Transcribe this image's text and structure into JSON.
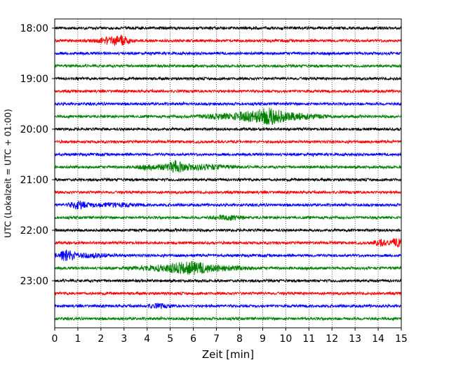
{
  "chart_data": {
    "type": "line",
    "title": "",
    "xlabel": "Zeit  [min]",
    "ylabel": "UTC (Lokalzeit = UTC + 01:00)",
    "xlim": [
      0,
      15
    ],
    "x_ticks": [
      0,
      1,
      2,
      3,
      4,
      5,
      6,
      7,
      8,
      9,
      10,
      11,
      12,
      13,
      14,
      15
    ],
    "x_tick_labels": [
      "0",
      "1",
      "2",
      "3",
      "4",
      "5",
      "6",
      "7",
      "8",
      "9",
      "10",
      "11",
      "12",
      "13",
      "14",
      "15"
    ],
    "y_tick_labels": [
      "18:00",
      "19:00",
      "20:00",
      "21:00",
      "22:00",
      "23:00"
    ],
    "grid": "x-only dotted",
    "legend": "none",
    "colors": [
      "#000000",
      "#ff0000",
      "#0000ff",
      "#008000"
    ],
    "trace_interval_minutes": 15,
    "first_trace": "18:00",
    "traces": [
      {
        "start": "18:00",
        "color": "#000000",
        "events": []
      },
      {
        "start": "18:15",
        "color": "#ff0000",
        "events": [
          {
            "t": 2.3,
            "amp": 3.5,
            "dur": 0.5
          },
          {
            "t": 2.9,
            "amp": 6,
            "dur": 0.35
          }
        ]
      },
      {
        "start": "18:30",
        "color": "#0000ff",
        "events": []
      },
      {
        "start": "18:45",
        "color": "#008000",
        "events": []
      },
      {
        "start": "19:00",
        "color": "#000000",
        "events": []
      },
      {
        "start": "19:15",
        "color": "#ff0000",
        "events": []
      },
      {
        "start": "19:30",
        "color": "#0000ff",
        "events": []
      },
      {
        "start": "19:45",
        "color": "#008000",
        "events": [
          {
            "t": 7.5,
            "amp": 3,
            "dur": 1.2
          },
          {
            "t": 8.5,
            "amp": 4,
            "dur": 0.6
          },
          {
            "t": 9.3,
            "amp": 8,
            "dur": 0.5
          },
          {
            "t": 10.2,
            "amp": 4,
            "dur": 1.2
          }
        ]
      },
      {
        "start": "20:00",
        "color": "#000000",
        "events": []
      },
      {
        "start": "20:15",
        "color": "#ff0000",
        "events": []
      },
      {
        "start": "20:30",
        "color": "#0000ff",
        "events": []
      },
      {
        "start": "20:45",
        "color": "#008000",
        "events": [
          {
            "t": 4.3,
            "amp": 2.5,
            "dur": 0.7
          },
          {
            "t": 5.25,
            "amp": 6,
            "dur": 0.35
          },
          {
            "t": 6.3,
            "amp": 3,
            "dur": 1.2
          }
        ]
      },
      {
        "start": "21:00",
        "color": "#000000",
        "events": []
      },
      {
        "start": "21:15",
        "color": "#ff0000",
        "events": []
      },
      {
        "start": "21:30",
        "color": "#0000ff",
        "events": [
          {
            "t": 1.0,
            "amp": 4.5,
            "dur": 0.3
          },
          {
            "t": 2.3,
            "amp": 2,
            "dur": 1.2
          }
        ]
      },
      {
        "start": "21:45",
        "color": "#008000",
        "events": [
          {
            "t": 7.5,
            "amp": 2.5,
            "dur": 0.6
          }
        ]
      },
      {
        "start": "22:00",
        "color": "#000000",
        "events": []
      },
      {
        "start": "22:15",
        "color": "#ff0000",
        "events": [
          {
            "t": 14.1,
            "amp": 3.5,
            "dur": 0.3
          },
          {
            "t": 14.8,
            "amp": 5,
            "dur": 0.3
          }
        ]
      },
      {
        "start": "22:30",
        "color": "#0000ff",
        "events": [
          {
            "t": 0.5,
            "amp": 6,
            "dur": 0.35
          },
          {
            "t": 1.4,
            "amp": 2.5,
            "dur": 1.0
          }
        ]
      },
      {
        "start": "22:45",
        "color": "#008000",
        "events": [
          {
            "t": 4.8,
            "amp": 3,
            "dur": 1.2
          },
          {
            "t": 5.9,
            "amp": 6,
            "dur": 0.8
          },
          {
            "t": 7.2,
            "amp": 2.5,
            "dur": 1.2
          }
        ]
      },
      {
        "start": "23:00",
        "color": "#000000",
        "events": []
      },
      {
        "start": "23:15",
        "color": "#ff0000",
        "events": []
      },
      {
        "start": "23:30",
        "color": "#0000ff",
        "events": [
          {
            "t": 4.5,
            "amp": 2,
            "dur": 0.5
          }
        ]
      },
      {
        "start": "23:45",
        "color": "#008000",
        "events": []
      }
    ]
  }
}
